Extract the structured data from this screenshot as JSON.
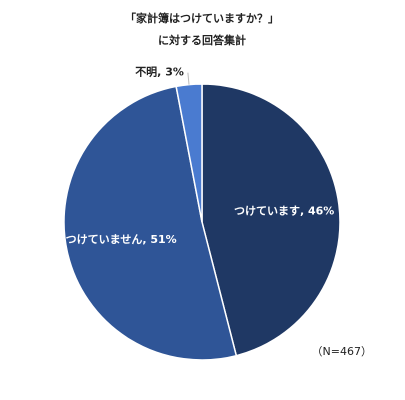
{
  "chart_data": {
    "type": "pie",
    "title": "「家計簿はつけていますか？」",
    "subtitle": "に対する回答集計",
    "categories": [
      "つけています",
      "つけていません",
      "不明"
    ],
    "values": [
      46,
      51,
      3
    ],
    "value_labels": [
      "つけています, 46%",
      "つけていません, 51%",
      "不明, 3%"
    ],
    "colors": [
      "#1f3864",
      "#2f5597",
      "#4a7bd0"
    ],
    "annotation": "（N=467）"
  }
}
